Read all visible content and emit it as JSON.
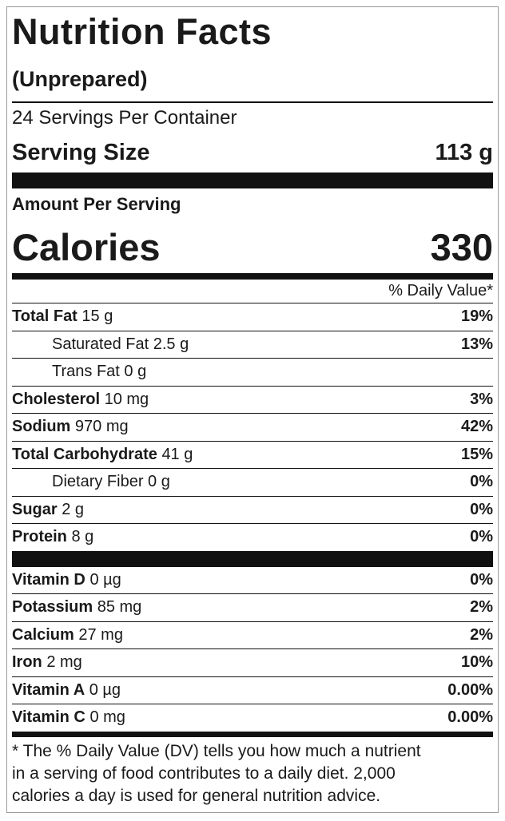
{
  "header": {
    "title": "Nutrition Facts",
    "subtitle": "(Unprepared)"
  },
  "servings": "24 Servings Per Container",
  "serving_size": {
    "label": "Serving Size",
    "value": "113 g"
  },
  "amount_per_serving": "Amount Per Serving",
  "calories": {
    "label": "Calories",
    "value": "330"
  },
  "daily_value_header": "% Daily Value*",
  "nutrients": [
    {
      "name": "Total Fat",
      "amount": "15 g",
      "dv": "19%"
    },
    {
      "name": "Saturated Fat",
      "amount": "2.5 g",
      "dv": "13%"
    },
    {
      "name": "Trans Fat",
      "amount": "0 g"
    },
    {
      "name": "Cholesterol",
      "amount": "10 mg",
      "dv": "3%"
    },
    {
      "name": "Sodium",
      "amount": "970 mg",
      "dv": "42%"
    },
    {
      "name": "Total Carbohydrate",
      "amount": "41 g",
      "dv": "15%"
    },
    {
      "name": "Dietary Fiber",
      "amount": "0 g",
      "dv": "0%"
    },
    {
      "name": "Sugar",
      "amount": "2 g",
      "dv": "0%"
    },
    {
      "name": "Protein",
      "amount": "8 g",
      "dv": "0%"
    }
  ],
  "vitamins": [
    {
      "name": "Vitamin D",
      "amount": "0 µg",
      "dv": "0%"
    },
    {
      "name": "Potassium",
      "amount": "85 mg",
      "dv": "2%"
    },
    {
      "name": "Calcium",
      "amount": "27 mg",
      "dv": "2%"
    },
    {
      "name": "Iron",
      "amount": "2 mg",
      "dv": "10%"
    },
    {
      "name": "Vitamin A",
      "amount": "0 µg",
      "dv": "0.00%"
    },
    {
      "name": "Vitamin C",
      "amount": "0 mg",
      "dv": "0.00%"
    }
  ],
  "footnote": [
    "* The % Daily Value (DV) tells you how much a nutrient",
    "in a serving of food contributes to a daily diet. 2,000",
    "calories a day is used for general nutrition advice."
  ]
}
